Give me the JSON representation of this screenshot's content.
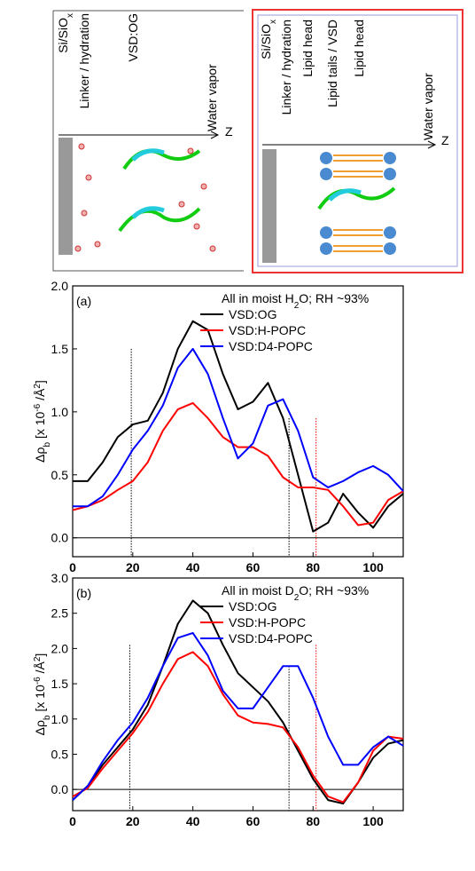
{
  "diagrams": [
    {
      "labels": [
        [
          "Si/SiO",
          "x"
        ],
        [
          "Linker / hydration"
        ],
        [
          "VSD:OG"
        ]
      ],
      "vapor": "Water vapor",
      "axis": "Z"
    },
    {
      "labels": [
        [
          "Si/SiO",
          "x"
        ],
        [
          "Linker / hydration"
        ],
        [
          "Lipid head"
        ],
        [
          "Lipid tails / VSD"
        ],
        [
          "Lipid head"
        ]
      ],
      "vapor": "Water vapor",
      "axis": "Z"
    }
  ],
  "chart_data": [
    {
      "type": "line",
      "panel": "(a)",
      "annotation": [
        "All in moist H",
        "2",
        "O; RH ~93%"
      ],
      "ylabel": [
        "Δρ",
        "b",
        " [x 10",
        "-6",
        " /Å",
        "2",
        "]"
      ],
      "x": [
        0,
        5,
        10,
        15,
        20,
        25,
        30,
        35,
        40,
        45,
        50,
        55,
        60,
        65,
        70,
        75,
        80,
        85,
        90,
        95,
        100,
        105,
        110
      ],
      "series": [
        {
          "name": "VSD:OG",
          "color": "#000000",
          "values": [
            0.45,
            0.45,
            0.6,
            0.8,
            0.9,
            0.93,
            1.15,
            1.5,
            1.72,
            1.65,
            1.3,
            1.02,
            1.08,
            1.23,
            0.95,
            0.5,
            0.05,
            0.12,
            0.35,
            0.2,
            0.08,
            0.25,
            0.35
          ]
        },
        {
          "name": "VSD:H-POPC",
          "color": "#ff0000",
          "values": [
            0.22,
            0.25,
            0.3,
            0.38,
            0.45,
            0.6,
            0.85,
            1.02,
            1.07,
            0.95,
            0.8,
            0.72,
            0.72,
            0.65,
            0.48,
            0.4,
            0.4,
            0.38,
            0.25,
            0.1,
            0.12,
            0.3,
            0.37
          ]
        },
        {
          "name": "VSD:D4-POPC",
          "color": "#0000ff",
          "values": [
            0.25,
            0.25,
            0.33,
            0.5,
            0.7,
            0.85,
            1.05,
            1.35,
            1.5,
            1.3,
            0.95,
            0.63,
            0.75,
            1.05,
            1.1,
            0.85,
            0.48,
            0.4,
            0.45,
            0.52,
            0.57,
            0.5,
            0.37
          ]
        }
      ],
      "xlim": [
        0,
        110
      ],
      "xticks": [
        0,
        20,
        40,
        60,
        80,
        100
      ],
      "ylim": [
        -0.15,
        2.0
      ],
      "yticks": [
        {
          "value": 0,
          "label": "0.0"
        },
        0.5,
        {
          "value": 1,
          "label": "1.0"
        },
        1.5,
        {
          "value": 2,
          "label": "2.0"
        }
      ],
      "hline": 0,
      "vlines": [
        {
          "x": 19.5,
          "ymax": 1.5,
          "color": "#000000"
        },
        {
          "x": 72,
          "ymax": 0.95,
          "color": "#000000"
        },
        {
          "x": 81,
          "ymax": 0.95,
          "color": "#ff0000"
        }
      ]
    },
    {
      "type": "line",
      "panel": "(b)",
      "annotation": [
        "All in moist D",
        "2",
        "O; RH ~93%"
      ],
      "ylabel": [
        "Δρ",
        "b",
        " [x 10",
        "-6",
        " /Å",
        "2",
        "]"
      ],
      "x": [
        0,
        5,
        10,
        15,
        20,
        25,
        30,
        35,
        40,
        45,
        50,
        55,
        60,
        65,
        70,
        75,
        80,
        85,
        90,
        95,
        100,
        105,
        110
      ],
      "series": [
        {
          "name": "VSD:OG",
          "color": "#000000",
          "values": [
            -0.15,
            0.05,
            0.35,
            0.6,
            0.85,
            1.2,
            1.75,
            2.35,
            2.68,
            2.5,
            2.05,
            1.65,
            1.45,
            1.25,
            0.95,
            0.55,
            0.15,
            -0.15,
            -0.2,
            0.1,
            0.45,
            0.65,
            0.7
          ]
        },
        {
          "name": "VSD:H-POPC",
          "color": "#ff0000",
          "values": [
            -0.1,
            0.02,
            0.3,
            0.55,
            0.8,
            1.1,
            1.5,
            1.85,
            1.95,
            1.75,
            1.35,
            1.05,
            0.95,
            0.93,
            0.88,
            0.6,
            0.2,
            -0.1,
            -0.18,
            0.1,
            0.55,
            0.75,
            0.72
          ]
        },
        {
          "name": "VSD:D4-POPC",
          "color": "#0000ff",
          "values": [
            -0.15,
            0.05,
            0.4,
            0.7,
            0.95,
            1.3,
            1.75,
            2.15,
            2.22,
            1.9,
            1.4,
            1.15,
            1.15,
            1.45,
            1.75,
            1.75,
            1.3,
            0.75,
            0.35,
            0.35,
            0.6,
            0.75,
            0.62
          ]
        }
      ],
      "xlim": [
        0,
        110
      ],
      "xticks": [
        0,
        20,
        40,
        60,
        80,
        100
      ],
      "ylim": [
        -0.3,
        3.0
      ],
      "yticks": [
        {
          "value": 0,
          "label": "0.0"
        },
        0.5,
        {
          "value": 1,
          "label": "1.0"
        },
        1.5,
        {
          "value": 2,
          "label": "2.0"
        },
        2.5,
        {
          "value": 3,
          "label": "3.0"
        }
      ],
      "hline": 0,
      "vlines": [
        {
          "x": 19,
          "ymax": 2.05,
          "color": "#000000"
        },
        {
          "x": 72,
          "ymax": 1.75,
          "color": "#000000"
        },
        {
          "x": 81,
          "ymax": 2.05,
          "color": "#ff0000"
        }
      ]
    }
  ]
}
